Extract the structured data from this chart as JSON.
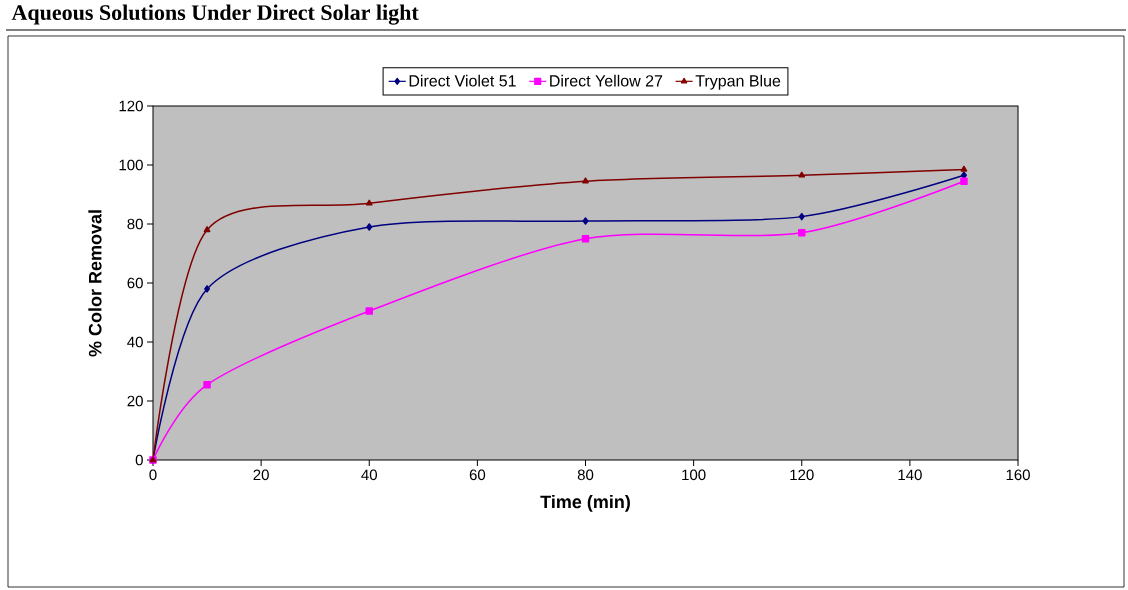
{
  "chart_data": {
    "type": "line",
    "title": "Aqueous Solutions Under Direct Solar light",
    "xlabel": "Time (min)",
    "ylabel": "% Color Removal",
    "x": [
      0,
      10,
      40,
      80,
      120,
      150
    ],
    "series": [
      {
        "name": "Direct Violet 51",
        "color": "#000080",
        "marker": "diamond",
        "values": [
          0,
          58,
          79,
          81,
          82.5,
          96.5
        ]
      },
      {
        "name": "Direct Yellow 27",
        "color": "#ff00ff",
        "marker": "square",
        "values": [
          0,
          25.5,
          50.5,
          75,
          77,
          94.5
        ]
      },
      {
        "name": "Trypan Blue",
        "color": "#800000",
        "marker": "triangle",
        "values": [
          0,
          78,
          87,
          94.5,
          96.5,
          98.5
        ]
      }
    ],
    "xlim": [
      0,
      160
    ],
    "xticks": [
      0,
      20,
      40,
      60,
      80,
      100,
      120,
      140,
      160
    ],
    "ylim": [
      0,
      120
    ],
    "yticks": [
      0,
      20,
      40,
      60,
      80,
      100,
      120
    ],
    "legend": "top",
    "grid": false,
    "line_style": "solid"
  }
}
